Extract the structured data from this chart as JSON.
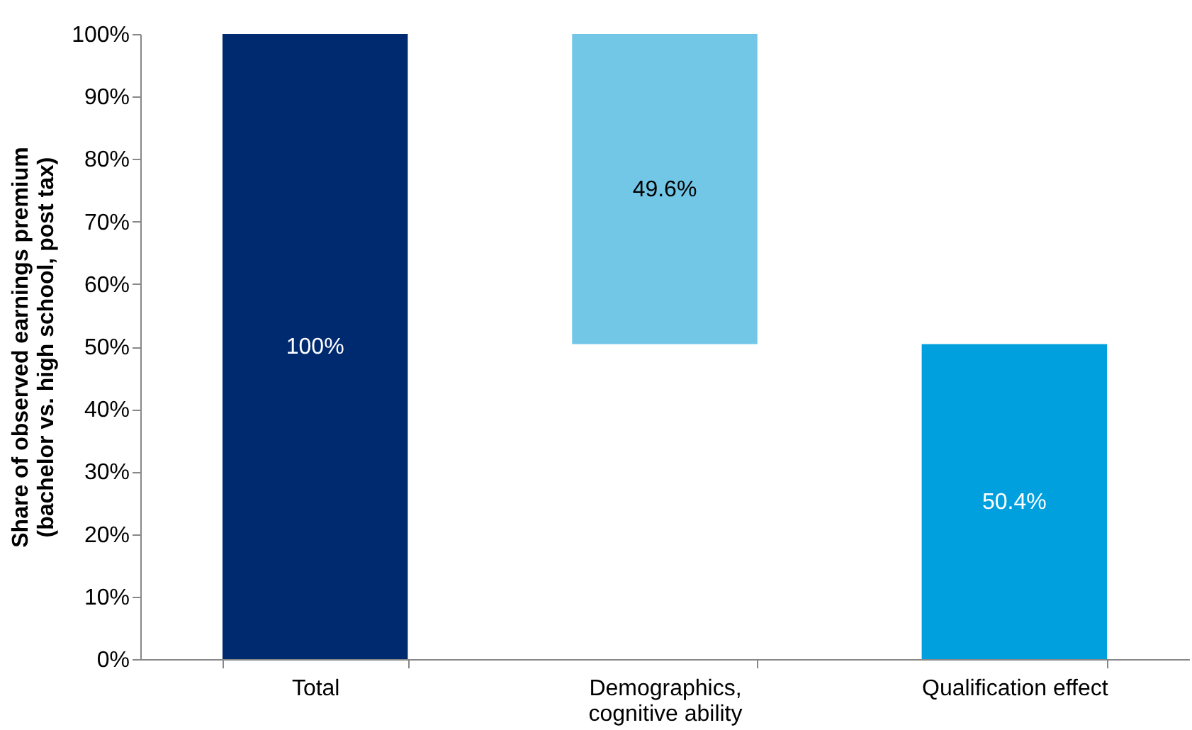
{
  "chart_data": {
    "type": "bar",
    "ylabel": "Share of observed earnings premium (bachelor vs. high school, post tax)",
    "categories": [
      "Total",
      "Demographics, cognitive ability",
      "Qualification effect"
    ],
    "values": [
      100,
      49.6,
      50.4
    ],
    "base": [
      0,
      50.4,
      0
    ],
    "colors": [
      "#002a6f",
      "#72c7e7",
      "#00a0df"
    ],
    "value_labels": [
      "100%",
      "49.6%",
      "50.4%"
    ],
    "ylim": [
      0,
      100
    ],
    "yticks": [
      {
        "value": 0,
        "label": "0%"
      },
      {
        "value": 10,
        "label": "10%"
      },
      {
        "value": 20,
        "label": "20%"
      },
      {
        "value": 30,
        "label": "30%"
      },
      {
        "value": 40,
        "label": "40%"
      },
      {
        "value": 50,
        "label": "50%"
      },
      {
        "value": 60,
        "label": "60%"
      },
      {
        "value": 70,
        "label": "70%"
      },
      {
        "value": 80,
        "label": "80%"
      },
      {
        "value": 90,
        "label": "90%"
      },
      {
        "value": 100,
        "label": "100%"
      }
    ],
    "grid": false
  }
}
